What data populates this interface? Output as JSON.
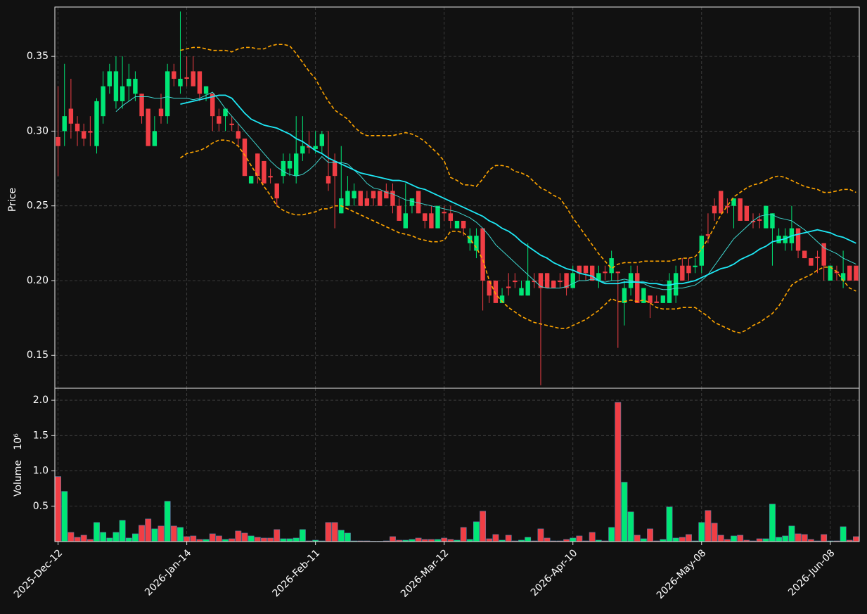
{
  "chart_data": {
    "type": "candlestick",
    "ylabel": "Price",
    "volume_ylabel": "Volume",
    "volume_offset": "10⁶",
    "categories": [
      "2025-Dec-12",
      null,
      null,
      null,
      null,
      null,
      null,
      null,
      null,
      null,
      null,
      null,
      null,
      null,
      null,
      null,
      null,
      null,
      null,
      null,
      "2026-Jan-14",
      null,
      null,
      null,
      null,
      null,
      null,
      null,
      null,
      null,
      null,
      null,
      null,
      null,
      null,
      null,
      null,
      null,
      null,
      null,
      "2026-Feb-11",
      null,
      null,
      null,
      null,
      null,
      null,
      null,
      null,
      null,
      null,
      null,
      null,
      null,
      null,
      null,
      null,
      null,
      null,
      null,
      "2026-Mar-12",
      null,
      null,
      null,
      null,
      null,
      null,
      null,
      null,
      null,
      null,
      null,
      null,
      null,
      null,
      null,
      null,
      null,
      null,
      null,
      "2026-Apr-10",
      null,
      null,
      null,
      null,
      null,
      null,
      null,
      null,
      null,
      null,
      null,
      null,
      null,
      null,
      null,
      null,
      null,
      null,
      null,
      "2026-May-08",
      null,
      null,
      null,
      null,
      null,
      null,
      null,
      null,
      null,
      null,
      null,
      null,
      null,
      null,
      null,
      null,
      null,
      null,
      null,
      "2026-Jun-08",
      null,
      null,
      null,
      null
    ],
    "open": [
      0.296,
      0.3,
      0.315,
      0.305,
      0.3,
      0.3,
      0.29,
      0.31,
      0.33,
      0.32,
      0.32,
      0.33,
      0.325,
      0.325,
      0.315,
      0.29,
      0.315,
      0.31,
      0.34,
      0.33,
      0.336,
      0.34,
      0.34,
      0.325,
      0.325,
      0.31,
      0.31,
      0.305,
      0.3,
      0.295,
      0.265,
      0.285,
      0.28,
      0.27,
      0.265,
      0.27,
      0.275,
      0.27,
      0.285,
      0.29,
      0.288,
      0.29,
      0.27,
      0.28,
      0.245,
      0.25,
      0.255,
      0.26,
      0.255,
      0.26,
      0.26,
      0.26,
      0.26,
      0.25,
      0.235,
      0.25,
      0.26,
      0.245,
      0.245,
      0.235,
      0.246,
      0.245,
      0.235,
      0.24,
      0.225,
      0.22,
      0.235,
      0.2,
      0.2,
      0.185,
      0.196,
      0.2,
      0.19,
      0.19,
      0.2,
      0.205,
      0.205,
      0.2,
      0.2,
      0.205,
      0.195,
      0.21,
      0.21,
      0.21,
      0.2,
      0.206,
      0.205,
      0.206,
      0.185,
      0.195,
      0.205,
      0.185,
      0.19,
      0.186,
      0.185,
      0.185,
      0.19,
      0.21,
      0.21,
      0.209,
      0.21,
      0.231,
      0.25,
      0.26,
      0.25,
      0.25,
      0.255,
      0.25,
      0.24,
      0.241,
      0.235,
      0.235,
      0.225,
      0.225,
      0.225,
      0.235,
      0.22,
      0.215,
      0.216,
      0.225,
      0.2,
      0.206,
      0.2,
      0.21,
      0.21
    ],
    "high": [
      0.33,
      0.345,
      0.335,
      0.31,
      0.305,
      0.31,
      0.322,
      0.34,
      0.345,
      0.35,
      0.35,
      0.345,
      0.34,
      0.325,
      0.315,
      0.31,
      0.325,
      0.345,
      0.345,
      0.38,
      0.35,
      0.35,
      0.34,
      0.33,
      0.325,
      0.315,
      0.315,
      0.31,
      0.305,
      0.295,
      0.27,
      0.285,
      0.28,
      0.275,
      0.265,
      0.285,
      0.285,
      0.31,
      0.31,
      0.3,
      0.3,
      0.3,
      0.3,
      0.285,
      0.29,
      0.27,
      0.265,
      0.26,
      0.26,
      0.26,
      0.26,
      0.265,
      0.265,
      0.255,
      0.265,
      0.255,
      0.26,
      0.245,
      0.25,
      0.25,
      0.25,
      0.25,
      0.24,
      0.24,
      0.235,
      0.235,
      0.235,
      0.2,
      0.2,
      0.195,
      0.205,
      0.205,
      0.2,
      0.225,
      0.205,
      0.205,
      0.205,
      0.2,
      0.205,
      0.205,
      0.21,
      0.21,
      0.21,
      0.21,
      0.21,
      0.21,
      0.22,
      0.206,
      0.2,
      0.21,
      0.21,
      0.195,
      0.19,
      0.19,
      0.19,
      0.205,
      0.21,
      0.215,
      0.215,
      0.215,
      0.23,
      0.245,
      0.255,
      0.26,
      0.255,
      0.255,
      0.255,
      0.25,
      0.245,
      0.245,
      0.25,
      0.245,
      0.235,
      0.235,
      0.25,
      0.235,
      0.22,
      0.215,
      0.22,
      0.225,
      0.21,
      0.21,
      0.22,
      0.21,
      0.21
    ],
    "low": [
      0.27,
      0.29,
      0.295,
      0.29,
      0.29,
      0.29,
      0.285,
      0.305,
      0.325,
      0.315,
      0.315,
      0.32,
      0.32,
      0.305,
      0.29,
      0.29,
      0.305,
      0.305,
      0.33,
      0.325,
      0.33,
      0.33,
      0.32,
      0.32,
      0.3,
      0.3,
      0.3,
      0.3,
      0.29,
      0.27,
      0.265,
      0.265,
      0.265,
      0.265,
      0.25,
      0.265,
      0.27,
      0.265,
      0.28,
      0.285,
      0.285,
      0.285,
      0.26,
      0.235,
      0.245,
      0.25,
      0.25,
      0.25,
      0.25,
      0.25,
      0.25,
      0.255,
      0.245,
      0.24,
      0.235,
      0.245,
      0.245,
      0.235,
      0.235,
      0.235,
      0.24,
      0.235,
      0.235,
      0.23,
      0.22,
      0.215,
      0.18,
      0.185,
      0.185,
      0.185,
      0.19,
      0.195,
      0.19,
      0.19,
      0.195,
      0.13,
      0.195,
      0.195,
      0.195,
      0.19,
      0.195,
      0.2,
      0.2,
      0.2,
      0.195,
      0.2,
      0.2,
      0.155,
      0.17,
      0.19,
      0.185,
      0.185,
      0.175,
      0.185,
      0.185,
      0.185,
      0.185,
      0.2,
      0.2,
      0.205,
      0.205,
      0.225,
      0.24,
      0.245,
      0.245,
      0.235,
      0.24,
      0.24,
      0.235,
      0.235,
      0.235,
      0.21,
      0.225,
      0.22,
      0.22,
      0.215,
      0.215,
      0.21,
      0.205,
      0.2,
      0.2,
      0.2,
      0.195,
      0.2,
      0.2
    ],
    "close": [
      0.29,
      0.31,
      0.305,
      0.3,
      0.295,
      0.299,
      0.32,
      0.33,
      0.34,
      0.34,
      0.33,
      0.335,
      0.335,
      0.31,
      0.29,
      0.3,
      0.31,
      0.34,
      0.335,
      0.335,
      0.335,
      0.33,
      0.325,
      0.33,
      0.31,
      0.305,
      0.315,
      0.304,
      0.295,
      0.27,
      0.27,
      0.27,
      0.265,
      0.269,
      0.255,
      0.28,
      0.28,
      0.285,
      0.29,
      0.289,
      0.29,
      0.298,
      0.265,
      0.27,
      0.255,
      0.26,
      0.26,
      0.25,
      0.25,
      0.255,
      0.25,
      0.255,
      0.25,
      0.24,
      0.245,
      0.255,
      0.245,
      0.24,
      0.235,
      0.25,
      0.245,
      0.24,
      0.24,
      0.235,
      0.23,
      0.23,
      0.2,
      0.19,
      0.185,
      0.19,
      0.195,
      0.199,
      0.195,
      0.2,
      0.199,
      0.195,
      0.195,
      0.195,
      0.199,
      0.195,
      0.205,
      0.205,
      0.205,
      0.2,
      0.205,
      0.205,
      0.215,
      0.205,
      0.195,
      0.205,
      0.185,
      0.195,
      0.185,
      0.185,
      0.19,
      0.2,
      0.205,
      0.2,
      0.205,
      0.21,
      0.23,
      0.23,
      0.245,
      0.245,
      0.249,
      0.255,
      0.24,
      0.24,
      0.239,
      0.24,
      0.25,
      0.245,
      0.23,
      0.23,
      0.235,
      0.22,
      0.215,
      0.21,
      0.215,
      0.21,
      0.21,
      0.205,
      0.205,
      0.2,
      0.2
    ],
    "volume": [
      0.92,
      0.71,
      0.13,
      0.06,
      0.09,
      0.03,
      0.27,
      0.13,
      0.05,
      0.13,
      0.3,
      0.05,
      0.11,
      0.23,
      0.32,
      0.18,
      0.22,
      0.57,
      0.22,
      0.2,
      0.07,
      0.08,
      0.03,
      0.03,
      0.11,
      0.08,
      0.03,
      0.04,
      0.15,
      0.12,
      0.08,
      0.06,
      0.05,
      0.05,
      0.17,
      0.04,
      0.04,
      0.05,
      0.17,
      0.01,
      0.02,
      0.01,
      0.27,
      0.27,
      0.16,
      0.12,
      0.01,
      0.01,
      0.01,
      0.005,
      0.005,
      0.01,
      0.07,
      0.02,
      0.02,
      0.03,
      0.05,
      0.03,
      0.03,
      0.03,
      0.05,
      0.03,
      0.02,
      0.2,
      0.03,
      0.28,
      0.43,
      0.04,
      0.1,
      0.02,
      0.09,
      0.01,
      0.02,
      0.06,
      0.01,
      0.18,
      0.05,
      0.01,
      0.01,
      0.03,
      0.05,
      0.08,
      0.01,
      0.13,
      0.02,
      0.01,
      0.2,
      1.97,
      0.84,
      0.42,
      0.09,
      0.04,
      0.18,
      0.01,
      0.03,
      0.49,
      0.05,
      0.06,
      0.1,
      0.01,
      0.27,
      0.44,
      0.26,
      0.09,
      0.03,
      0.08,
      0.09,
      0.02,
      0.01,
      0.04,
      0.04,
      0.53,
      0.06,
      0.08,
      0.22,
      0.11,
      0.1,
      0.03,
      0.01,
      0.1,
      0.01,
      0.01,
      0.21,
      0.02,
      0.07
    ],
    "up_color": "#00e676",
    "down_color": "#f03e45",
    "overlays": [
      {
        "color": "#3fd6cf",
        "width": 1,
        "dash": false,
        "values": [
          null,
          null,
          null,
          null,
          null,
          null,
          null,
          null,
          null,
          0.313,
          0.317,
          0.32,
          0.323,
          0.323,
          0.323,
          0.322,
          0.322,
          0.323,
          0.322,
          0.322,
          0.322,
          0.321,
          0.322,
          0.324,
          0.326,
          0.321,
          0.315,
          0.31,
          0.305,
          0.3,
          0.295,
          0.29,
          0.285,
          0.28,
          0.276,
          0.273,
          0.271,
          0.27,
          0.271,
          0.274,
          0.278,
          0.283,
          0.279,
          0.279,
          0.279,
          0.278,
          0.274,
          0.27,
          0.265,
          0.262,
          0.261,
          0.259,
          0.258,
          0.256,
          0.254,
          0.253,
          0.252,
          0.251,
          0.25,
          0.249,
          0.248,
          0.247,
          0.246,
          0.244,
          0.242,
          0.239,
          0.235,
          0.23,
          0.224,
          0.22,
          0.216,
          0.212,
          0.208,
          0.204,
          0.2,
          0.196,
          0.195,
          0.195,
          0.195,
          0.196,
          0.198,
          0.2,
          0.2,
          0.201,
          0.2,
          0.199,
          0.2,
          0.2,
          0.201,
          0.2,
          0.199,
          0.198,
          0.196,
          0.195,
          0.194,
          0.194,
          0.195,
          0.195,
          0.196,
          0.197,
          0.2,
          0.204,
          0.21,
          0.216,
          0.222,
          0.228,
          0.232,
          0.236,
          0.24,
          0.243,
          0.244,
          0.244,
          0.242,
          0.241,
          0.24,
          0.237,
          0.234,
          0.23,
          0.226,
          0.222,
          0.22,
          0.218,
          0.215,
          0.213,
          0.211
        ]
      },
      {
        "color": "#1ee8f5",
        "width": 1.8,
        "dash": false,
        "values": [
          null,
          null,
          null,
          null,
          null,
          null,
          null,
          null,
          null,
          null,
          null,
          null,
          null,
          null,
          null,
          null,
          null,
          null,
          null,
          0.318,
          0.319,
          0.32,
          0.321,
          0.322,
          0.323,
          0.324,
          0.324,
          0.322,
          0.317,
          0.312,
          0.308,
          0.306,
          0.304,
          0.303,
          0.302,
          0.3,
          0.298,
          0.295,
          0.293,
          0.29,
          0.287,
          0.285,
          0.282,
          0.28,
          0.278,
          0.276,
          0.274,
          0.272,
          0.271,
          0.27,
          0.269,
          0.268,
          0.267,
          0.267,
          0.266,
          0.264,
          0.262,
          0.261,
          0.259,
          0.257,
          0.255,
          0.253,
          0.251,
          0.249,
          0.247,
          0.245,
          0.243,
          0.24,
          0.238,
          0.235,
          0.233,
          0.23,
          0.226,
          0.223,
          0.22,
          0.217,
          0.215,
          0.212,
          0.21,
          0.208,
          0.207,
          0.205,
          0.204,
          0.203,
          0.2,
          0.198,
          0.198,
          0.198,
          0.199,
          0.199,
          0.199,
          0.199,
          0.198,
          0.198,
          0.197,
          0.197,
          0.198,
          0.198,
          0.199,
          0.2,
          0.202,
          0.204,
          0.206,
          0.208,
          0.209,
          0.211,
          0.214,
          0.216,
          0.218,
          0.221,
          0.223,
          0.226,
          0.227,
          0.228,
          0.23,
          0.231,
          0.232,
          0.233,
          0.234,
          0.233,
          0.232,
          0.23,
          0.229,
          0.227,
          0.225
        ]
      },
      {
        "color": "#ffa500",
        "width": 1.6,
        "dash": true,
        "values": [
          null,
          null,
          null,
          null,
          null,
          null,
          null,
          null,
          null,
          null,
          null,
          null,
          null,
          null,
          null,
          null,
          null,
          null,
          null,
          0.354,
          0.355,
          0.356,
          0.356,
          0.355,
          0.354,
          0.354,
          0.354,
          0.353,
          0.355,
          0.356,
          0.356,
          0.355,
          0.355,
          0.357,
          0.358,
          0.358,
          0.357,
          0.352,
          0.346,
          0.34,
          0.335,
          0.327,
          0.32,
          0.314,
          0.311,
          0.308,
          0.303,
          0.299,
          0.297,
          0.297,
          0.297,
          0.297,
          0.297,
          0.298,
          0.299,
          0.298,
          0.296,
          0.293,
          0.289,
          0.285,
          0.28,
          0.269,
          0.267,
          0.264,
          0.264,
          0.263,
          0.268,
          0.274,
          0.277,
          0.277,
          0.276,
          0.273,
          0.272,
          0.27,
          0.266,
          0.262,
          0.26,
          0.257,
          0.255,
          0.249,
          0.242,
          0.236,
          0.23,
          0.224,
          0.218,
          0.213,
          0.208,
          0.211,
          0.212,
          0.212,
          0.212,
          0.213,
          0.213,
          0.213,
          0.213,
          0.213,
          0.214,
          0.215,
          0.215,
          0.216,
          0.221,
          0.228,
          0.236,
          0.244,
          0.25,
          0.256,
          0.259,
          0.262,
          0.264,
          0.265,
          0.267,
          0.269,
          0.27,
          0.269,
          0.267,
          0.265,
          0.263,
          0.262,
          0.261,
          0.259,
          0.259,
          0.26,
          0.261,
          0.261,
          0.259
        ]
      },
      {
        "color": "#ffa500",
        "width": 1.6,
        "dash": true,
        "values": [
          null,
          null,
          null,
          null,
          null,
          null,
          null,
          null,
          null,
          null,
          null,
          null,
          null,
          null,
          null,
          null,
          null,
          null,
          null,
          0.282,
          0.285,
          0.286,
          0.287,
          0.289,
          0.292,
          0.294,
          0.294,
          0.293,
          0.29,
          0.284,
          0.277,
          0.27,
          0.263,
          0.257,
          0.25,
          0.247,
          0.245,
          0.244,
          0.244,
          0.245,
          0.246,
          0.248,
          0.248,
          0.25,
          0.25,
          0.248,
          0.246,
          0.244,
          0.242,
          0.24,
          0.238,
          0.236,
          0.234,
          0.232,
          0.231,
          0.23,
          0.228,
          0.227,
          0.226,
          0.226,
          0.227,
          0.233,
          0.233,
          0.232,
          0.228,
          0.222,
          0.214,
          0.2,
          0.191,
          0.186,
          0.182,
          0.179,
          0.176,
          0.174,
          0.172,
          0.171,
          0.17,
          0.169,
          0.168,
          0.168,
          0.17,
          0.172,
          0.174,
          0.177,
          0.18,
          0.184,
          0.188,
          0.186,
          0.186,
          0.187,
          0.186,
          0.187,
          0.185,
          0.182,
          0.181,
          0.181,
          0.181,
          0.182,
          0.182,
          0.182,
          0.179,
          0.176,
          0.172,
          0.17,
          0.168,
          0.166,
          0.165,
          0.167,
          0.17,
          0.172,
          0.175,
          0.178,
          0.183,
          0.19,
          0.197,
          0.2,
          0.202,
          0.204,
          0.207,
          0.209,
          0.209,
          0.206,
          0.2,
          0.195,
          0.193
        ]
      }
    ],
    "ylim": [
      0.128,
      0.383
    ],
    "yticks": [
      0.15,
      {
        "value": 0.2,
        "label": "0.20"
      },
      0.25,
      {
        "value": 0.3,
        "label": "0.30"
      },
      0.35
    ],
    "volume_ylim": [
      0,
      2.17
    ],
    "volume_yticks": [
      0.5,
      {
        "value": 1,
        "label": "1.0"
      },
      1.5,
      {
        "value": 2,
        "label": "2.0"
      }
    ],
    "grid": true
  }
}
